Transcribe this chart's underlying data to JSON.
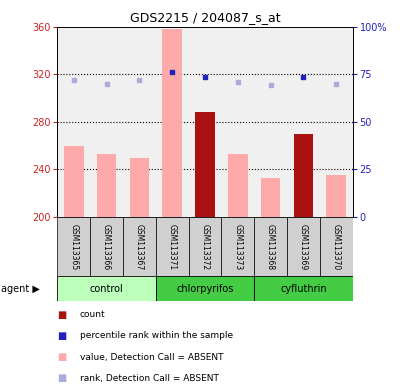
{
  "title": "GDS2215 / 204087_s_at",
  "samples": [
    "GSM113365",
    "GSM113366",
    "GSM113367",
    "GSM113371",
    "GSM113372",
    "GSM113373",
    "GSM113368",
    "GSM113369",
    "GSM113370"
  ],
  "bar_values": [
    260,
    253,
    250,
    358,
    288,
    253,
    233,
    270,
    235
  ],
  "bar_colors": [
    "#ffaaaa",
    "#ffaaaa",
    "#ffaaaa",
    "#ffaaaa",
    "#aa1111",
    "#ffaaaa",
    "#ffaaaa",
    "#aa1111",
    "#ffaaaa"
  ],
  "rank_values": [
    72.2,
    70.0,
    72.2,
    76.4,
    73.8,
    71.2,
    69.4,
    73.8,
    70.0
  ],
  "rank_colors": [
    "#aaaadd",
    "#aaaadd",
    "#aaaadd",
    "#2222bb",
    "#2222bb",
    "#aaaadd",
    "#aaaadd",
    "#2222bb",
    "#aaaadd"
  ],
  "ylim_left": [
    200,
    360
  ],
  "ylim_right": [
    0,
    100
  ],
  "yticks_left": [
    200,
    240,
    280,
    320,
    360
  ],
  "yticks_right": [
    0,
    25,
    50,
    75,
    100
  ],
  "ytick_labels_right": [
    "0",
    "25",
    "50",
    "75",
    "100%"
  ],
  "hlines": [
    240,
    280,
    320
  ],
  "left_tick_color": "#cc2222",
  "right_tick_color": "#2222bb",
  "group_info": [
    {
      "name": "control",
      "start": 0,
      "end": 2,
      "color": "#bbffbb"
    },
    {
      "name": "chlorpyrifos",
      "start": 3,
      "end": 5,
      "color": "#44cc44"
    },
    {
      "name": "cyfluthrin",
      "start": 6,
      "end": 8,
      "color": "#44cc44"
    }
  ],
  "legend_items": [
    {
      "label": "count",
      "color": "#aa1111",
      "marker": "s"
    },
    {
      "label": "percentile rank within the sample",
      "color": "#2222bb",
      "marker": "s"
    },
    {
      "label": "value, Detection Call = ABSENT",
      "color": "#ffaaaa",
      "marker": "s"
    },
    {
      "label": "rank, Detection Call = ABSENT",
      "color": "#aaaadd",
      "marker": "s"
    }
  ]
}
